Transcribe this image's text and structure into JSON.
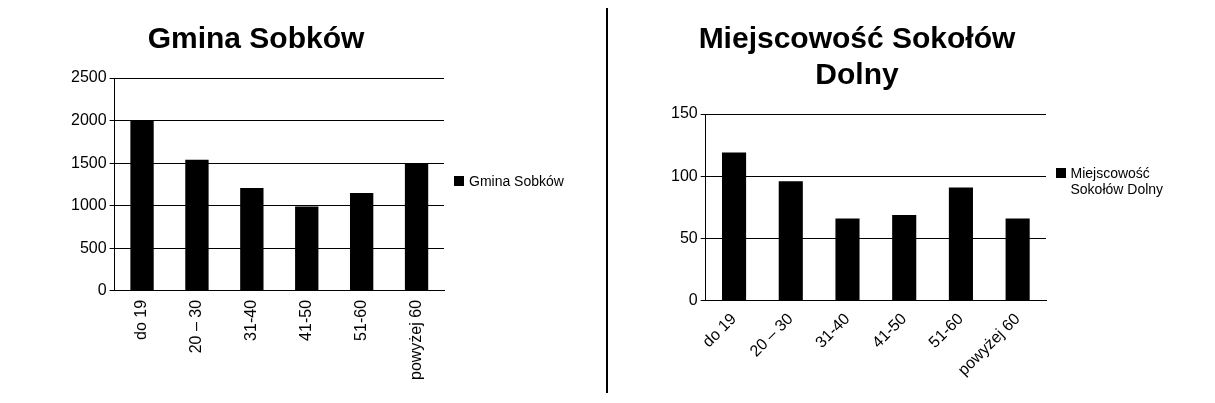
{
  "chart_data": [
    {
      "type": "bar",
      "title": "Gmina Sobków",
      "categories": [
        "do 19",
        "20 – 30",
        "31-40",
        "41-50",
        "51-60",
        "powyżej 60"
      ],
      "series": [
        {
          "name": "Gmina Sobków",
          "color": "#000000",
          "values": [
            2000,
            1540,
            1210,
            990,
            1150,
            1500
          ]
        }
      ],
      "ylim": [
        0,
        2500
      ],
      "yticks": [
        0,
        500,
        1000,
        1500,
        2000,
        2500
      ],
      "grid": "y",
      "legend": "right"
    },
    {
      "type": "bar",
      "title": "Miejscowość Sokołów Dolny",
      "categories": [
        "do 19",
        "20 – 30",
        "31-40",
        "41-50",
        "51-60",
        "powyżej 60"
      ],
      "series": [
        {
          "name": "Miejscowość Sokołów Dolny",
          "color": "#000000",
          "values": [
            119,
            96,
            66,
            69,
            91,
            66
          ]
        }
      ],
      "ylim": [
        0,
        150
      ],
      "yticks": [
        0,
        50,
        100,
        150
      ],
      "grid": "y",
      "legend": "right"
    }
  ]
}
